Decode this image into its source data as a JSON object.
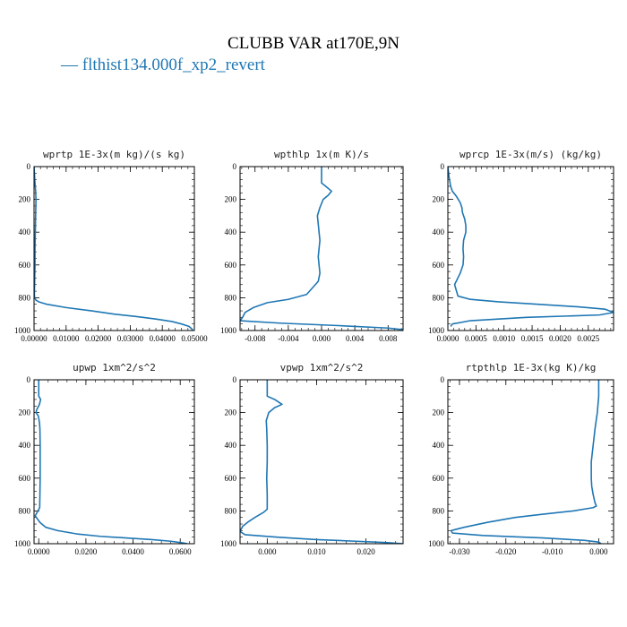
{
  "figure": {
    "title": "CLUBB VAR at170E,9N",
    "legend_label": "— flthist134.000f_xp2_revert",
    "series_color": "#1f77b4"
  },
  "chart_data": [
    {
      "type": "line",
      "title": "wprtp  1E-3x(m kg)/(s kg)",
      "xlim": [
        0,
        0.05
      ],
      "ylim": [
        0,
        1000
      ],
      "y_inverted": true,
      "xticks": [
        0,
        0.01,
        0.02,
        0.03,
        0.04,
        0.05
      ],
      "xtick_labels": [
        "0.00000",
        "0.01000",
        "0.02000",
        "0.03000",
        "0.04000",
        "0.05000"
      ],
      "yticks": [
        0,
        200,
        400,
        600,
        800,
        1000
      ],
      "ytick_labels": [
        "0",
        "200",
        "400",
        "600",
        "800",
        "1000"
      ],
      "series": [
        {
          "x": [
            0,
            0.0003,
            0.0005,
            0.0006,
            0.0005,
            0.0004,
            0.0003,
            0.0003,
            0.0002,
            0.0001,
            0.0002,
            0.0006,
            0.0015,
            0.004,
            0.01,
            0.018,
            0.025,
            0.032,
            0.038,
            0.043,
            0.046,
            0.0483,
            0.0492,
            0.0495
          ],
          "y": [
            0,
            100,
            150,
            200,
            300,
            400,
            500,
            600,
            700,
            780,
            800,
            815,
            825,
            840,
            860,
            880,
            900,
            915,
            930,
            945,
            960,
            975,
            990,
            1000
          ]
        }
      ]
    },
    {
      "type": "line",
      "title": "wpthlp  1x(m K)/s",
      "xlim": [
        -0.0098,
        0.0098
      ],
      "ylim": [
        0,
        1000
      ],
      "y_inverted": true,
      "xticks": [
        -0.008,
        -0.004,
        0,
        0.004,
        0.008
      ],
      "xtick_labels": [
        "-0.008",
        "-0.004",
        "0.000",
        "0.004",
        "0.008"
      ],
      "yticks": [
        0,
        200,
        400,
        600,
        800,
        1000
      ],
      "ytick_labels": [
        "0",
        "200",
        "400",
        "600",
        "800",
        "1000"
      ],
      "series": [
        {
          "x": [
            0,
            0,
            0,
            0.0005,
            0.0012,
            0.0008,
            0.0002,
            -0.0002,
            -0.0005,
            -0.0004,
            -0.0003,
            -0.0002,
            -0.0003,
            -0.0004,
            -0.0003,
            -0.0002,
            -0.0004,
            -0.0018,
            -0.004,
            -0.0065,
            -0.0082,
            -0.0092,
            -0.0095,
            -0.0098,
            -0.005,
            0.002,
            0.008,
            0.0098
          ],
          "y": [
            0,
            50,
            100,
            120,
            150,
            175,
            200,
            250,
            300,
            350,
            400,
            450,
            500,
            550,
            600,
            650,
            700,
            780,
            810,
            830,
            860,
            890,
            920,
            940,
            955,
            970,
            985,
            995
          ]
        }
      ]
    },
    {
      "type": "line",
      "title": "wprcp  1E-3x(m/s) (kg/kg)",
      "xlim": [
        0,
        0.00295
      ],
      "ylim": [
        0,
        1000
      ],
      "y_inverted": true,
      "xticks": [
        0,
        0.0005,
        0.001,
        0.0015,
        0.002,
        0.0025
      ],
      "xtick_labels": [
        "0.0000",
        "0.0005",
        "0.0010",
        "0.0015",
        "0.0020",
        "0.0025"
      ],
      "yticks": [
        0,
        200,
        400,
        600,
        800,
        1000
      ],
      "ytick_labels": [
        "0",
        "200",
        "400",
        "600",
        "800",
        "1000"
      ],
      "series": [
        {
          "x": [
            0,
            2e-05,
            5e-05,
            8e-05,
            0.00015,
            0.00022,
            0.00025,
            0.00026,
            0.0003,
            0.00032,
            0.00032,
            0.00028,
            0.00027,
            0.00028,
            0.00027,
            0.00022,
            0.00012,
            0.00018,
            0.0004,
            0.0009,
            0.0016,
            0.0023,
            0.0028,
            0.00295,
            0.0027,
            0.0014,
            0.0004,
            8e-05,
            5e-05
          ],
          "y": [
            0,
            60,
            120,
            150,
            180,
            220,
            250,
            280,
            320,
            360,
            400,
            450,
            500,
            550,
            600,
            650,
            720,
            790,
            810,
            825,
            840,
            855,
            870,
            890,
            905,
            920,
            940,
            960,
            975
          ]
        }
      ]
    },
    {
      "type": "line",
      "title": "upwp  1xm^2/s^2",
      "xlim": [
        -0.002,
        0.066
      ],
      "ylim": [
        0,
        1000
      ],
      "y_inverted": true,
      "xticks": [
        0,
        0.02,
        0.04,
        0.06
      ],
      "xtick_labels": [
        "0.0000",
        "0.0200",
        "0.0400",
        "0.0600"
      ],
      "yticks": [
        0,
        200,
        400,
        600,
        800,
        1000
      ],
      "ytick_labels": [
        "0",
        "200",
        "400",
        "600",
        "800",
        "1000"
      ],
      "series": [
        {
          "x": [
            0,
            0,
            0,
            0.0008,
            0.0003,
            -0.0008,
            -0.0012,
            -0.0002,
            0.0003,
            0.0005,
            0.0006,
            0.0006,
            0.0006,
            0.0005,
            0.0004,
            -0.0015,
            0.0005,
            0.003,
            0.008,
            0.016,
            0.026,
            0.037,
            0.048,
            0.056,
            0.061,
            0.063
          ],
          "y": [
            0,
            50,
            100,
            120,
            150,
            180,
            200,
            220,
            260,
            300,
            400,
            500,
            600,
            700,
            780,
            830,
            870,
            900,
            920,
            940,
            955,
            965,
            975,
            985,
            995,
            1000
          ]
        }
      ]
    },
    {
      "type": "line",
      "title": "vpwp  1xm^2/s^2",
      "xlim": [
        -0.0055,
        0.0275
      ],
      "ylim": [
        0,
        1000
      ],
      "y_inverted": true,
      "xticks": [
        0,
        0.01,
        0.02
      ],
      "xtick_labels": [
        "0.000",
        "0.010",
        "0.020"
      ],
      "yticks": [
        0,
        200,
        400,
        600,
        800,
        1000
      ],
      "ytick_labels": [
        "0",
        "200",
        "400",
        "600",
        "800",
        "1000"
      ],
      "series": [
        {
          "x": [
            0,
            0,
            0,
            0.0015,
            0.003,
            0.0015,
            0.0003,
            -0.0002,
            -0.0001,
            0,
            0,
            -0.0001,
            0,
            0,
            0,
            -0.0008,
            -0.0025,
            -0.004,
            -0.005,
            -0.0055,
            -0.0045,
            0.002,
            0.01,
            0.018,
            0.024,
            0.0275
          ],
          "y": [
            0,
            50,
            100,
            120,
            150,
            170,
            200,
            250,
            300,
            400,
            500,
            600,
            700,
            760,
            790,
            810,
            840,
            870,
            895,
            925,
            945,
            960,
            975,
            985,
            993,
            1000
          ]
        }
      ]
    },
    {
      "type": "line",
      "title": "rtpthlp  1E-3x(kg K)/kg",
      "xlim": [
        -0.0325,
        0.0032
      ],
      "ylim": [
        0,
        1000
      ],
      "y_inverted": true,
      "xticks": [
        -0.03,
        -0.02,
        -0.01,
        0
      ],
      "xtick_labels": [
        "-0.030",
        "-0.020",
        "-0.010",
        "0.000"
      ],
      "yticks": [
        0,
        200,
        400,
        600,
        800,
        1000
      ],
      "ytick_labels": [
        "0",
        "200",
        "400",
        "600",
        "800",
        "1000"
      ],
      "series": [
        {
          "x": [
            0,
            0,
            -0.0003,
            -0.0008,
            -0.0012,
            -0.0016,
            -0.0016,
            -0.0015,
            -0.0012,
            -0.0008,
            -0.0005,
            -0.0012,
            -0.0055,
            -0.012,
            -0.018,
            -0.024,
            -0.029,
            -0.0318,
            -0.0315,
            -0.025,
            -0.012,
            -0.003,
            0,
            0.0005
          ],
          "y": [
            0,
            100,
            200,
            300,
            400,
            500,
            600,
            650,
            700,
            750,
            770,
            780,
            800,
            820,
            840,
            870,
            900,
            920,
            935,
            950,
            965,
            980,
            990,
            1000
          ]
        }
      ]
    }
  ]
}
